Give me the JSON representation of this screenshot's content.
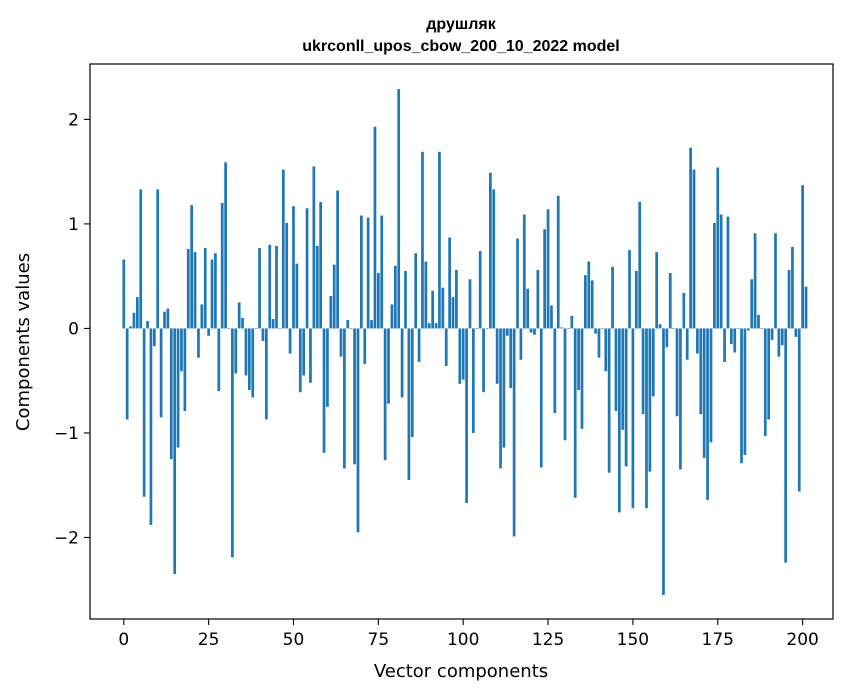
{
  "chart_data": {
    "type": "bar",
    "title_line1": "друшляк",
    "title_line2": "ukrconll_upos_cbow_200_10_2022 model",
    "xlabel": "Vector components",
    "ylabel": "Components values",
    "xlim": [
      -9.95,
      208.95
    ],
    "ylim": [
      -2.78,
      2.53
    ],
    "xticks": [
      0,
      25,
      50,
      75,
      100,
      125,
      150,
      175,
      200
    ],
    "yticks": [
      -2,
      -1,
      0,
      1,
      2
    ],
    "ytick_labels": [
      "−2",
      "−1",
      "0",
      "1",
      "2"
    ],
    "bar_color": "#1f77b4",
    "grid": false,
    "legend": "none",
    "values": [
      0.66,
      -0.87,
      0.02,
      0.15,
      0.3,
      1.33,
      -1.61,
      0.07,
      -1.88,
      -0.17,
      1.33,
      -0.85,
      0.16,
      0.19,
      -1.25,
      -2.35,
      -1.14,
      -0.41,
      -0.79,
      0.76,
      1.18,
      0.73,
      -0.28,
      0.23,
      0.77,
      -0.07,
      0.66,
      0.72,
      -0.6,
      1.2,
      1.59,
      0.0,
      -2.19,
      -0.43,
      0.25,
      0.1,
      -0.45,
      -0.59,
      -0.66,
      0.0,
      0.77,
      -0.12,
      -0.87,
      0.8,
      0.09,
      0.79,
      0.0,
      1.52,
      1.01,
      -0.24,
      1.17,
      0.62,
      -0.61,
      -0.45,
      1.15,
      -0.52,
      1.55,
      0.79,
      1.21,
      -1.19,
      -0.75,
      0.31,
      0.61,
      1.32,
      -0.27,
      -1.34,
      0.08,
      0.0,
      -1.3,
      -1.95,
      1.08,
      -0.34,
      1.06,
      0.08,
      1.93,
      0.53,
      1.08,
      -1.26,
      -0.72,
      0.23,
      0.6,
      2.29,
      -0.66,
      0.55,
      -1.45,
      -1.04,
      0.72,
      -0.32,
      1.69,
      0.64,
      0.05,
      0.36,
      0.05,
      1.69,
      0.39,
      -0.36,
      0.87,
      0.3,
      0.56,
      -0.53,
      -0.49,
      -1.67,
      0.47,
      -1.0,
      0.0,
      0.74,
      -0.61,
      0.0,
      1.49,
      1.33,
      -0.53,
      -1.34,
      -1.14,
      -0.07,
      -0.57,
      -1.99,
      0.86,
      -0.3,
      1.09,
      0.38,
      -0.04,
      -0.06,
      0.56,
      -1.33,
      0.95,
      1.14,
      0.22,
      -0.81,
      1.27,
      0.01,
      -1.07,
      0.0,
      0.12,
      -1.62,
      -0.59,
      -0.96,
      0.51,
      0.64,
      0.46,
      -0.05,
      -0.28,
      0.0,
      -0.41,
      -1.38,
      0.59,
      -0.79,
      -1.76,
      -0.97,
      -1.32,
      0.75,
      -1.72,
      0.55,
      1.21,
      -0.82,
      -1.72,
      -1.37,
      -0.65,
      0.73,
      0.04,
      -2.55,
      -0.18,
      0.53,
      0.0,
      -0.84,
      -1.35,
      0.34,
      -0.3,
      1.73,
      1.52,
      -0.24,
      -0.82,
      -1.24,
      -1.64,
      -1.09,
      1.01,
      1.54,
      1.09,
      -0.32,
      1.07,
      -0.15,
      -0.23,
      0.0,
      -1.29,
      -1.21,
      -0.02,
      0.47,
      0.91,
      0.13,
      0.0,
      -1.03,
      -0.87,
      -0.11,
      0.91,
      -0.27,
      -0.16,
      -2.24,
      0.56,
      0.78,
      -0.08,
      -1.56,
      1.37,
      0.4
    ]
  }
}
